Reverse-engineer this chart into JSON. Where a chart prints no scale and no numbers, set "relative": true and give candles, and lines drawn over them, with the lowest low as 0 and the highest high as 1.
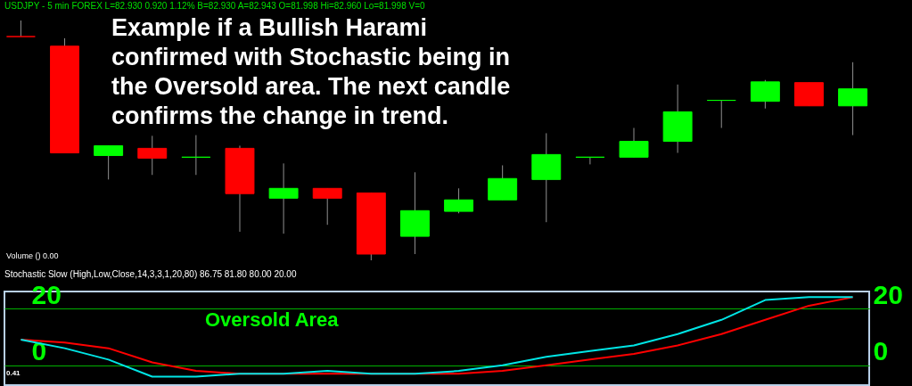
{
  "chart_data": [
    {
      "type": "candlestick",
      "title": "USDJPY - 5 min FOREX L=82.930 0.920 1.12% B=82.930 A=82.943 O=81.998 Hi=82.960 Lo=81.998 V=0",
      "relative": true,
      "categories": [
        null,
        null,
        null,
        null,
        null,
        null,
        null,
        null,
        null,
        null,
        null,
        null,
        null,
        null,
        null,
        null,
        null,
        null,
        null,
        null
      ],
      "ohlc": [
        [
          0.933,
          1,
          0.933,
          0.933
        ],
        [
          0.893,
          0.926,
          0.448,
          0.448
        ],
        [
          0.437,
          0.478,
          0.337,
          0.478
        ],
        [
          0.467,
          0.519,
          0.356,
          0.426
        ],
        [
          0.43,
          0.522,
          0.356,
          0.43
        ],
        [
          0.467,
          0.478,
          0.119,
          0.278
        ],
        [
          0.259,
          0.404,
          0.111,
          0.3
        ],
        [
          0.3,
          0.3,
          0.148,
          0.259
        ],
        [
          0.281,
          0.281,
          0,
          0.026
        ],
        [
          0.1,
          0.367,
          0.026,
          0.207
        ],
        [
          0.204,
          0.3,
          0.196,
          0.252
        ],
        [
          0.252,
          0.396,
          0.252,
          0.341
        ],
        [
          0.337,
          0.53,
          0.159,
          0.441
        ],
        [
          0.43,
          0.43,
          0.4,
          0.43
        ],
        [
          0.43,
          0.552,
          0.43,
          0.496
        ],
        [
          0.496,
          0.733,
          0.448,
          0.619
        ],
        [
          0.667,
          0.667,
          0.552,
          0.667
        ],
        [
          0.663,
          0.752,
          0.633,
          0.744
        ],
        [
          0.741,
          0.741,
          0.644,
          0.644
        ],
        [
          0.644,
          0.826,
          0.522,
          0.715
        ]
      ],
      "colors": [
        "#ff0000",
        "#ff0000",
        "#00ff00",
        "#ff0000",
        "#00ff00",
        "#ff0000",
        "#00ff00",
        "#ff0000",
        "#ff0000",
        "#00ff00",
        "#00ff00",
        "#00ff00",
        "#00ff00",
        "#00ff00",
        "#00ff00",
        "#00ff00",
        "#00ff00",
        "#00ff00",
        "#ff0000",
        "#00ff00"
      ],
      "annotations": [
        "Example if a Bullish Harami confirmed with Stochastic being in the Oversold area. The next candle confirms the change in trend.",
        "Volume () 0.00"
      ]
    },
    {
      "type": "line",
      "title": "Stochastic Slow (High,Low,Close,14,3,3,1,20,80) 86.75 81.80 80.00 20.00",
      "categories": [
        null,
        null,
        null,
        null,
        null,
        null,
        null,
        null,
        null,
        null,
        null,
        null,
        null,
        null,
        null,
        null,
        null,
        null,
        null,
        null
      ],
      "series": [
        {
          "color": "#00e5e5",
          "values": [
            9,
            6,
            2,
            -4,
            -4,
            -3,
            -3,
            -2,
            -3,
            -3,
            -2,
            0,
            3,
            5,
            7,
            11,
            16,
            23,
            24,
            24
          ]
        },
        {
          "color": "#ff0000",
          "values": [
            9,
            8,
            6,
            1,
            -2,
            -3,
            -3,
            -3,
            -3,
            -3,
            -3,
            -2,
            0,
            2,
            4,
            7,
            11,
            16,
            21,
            24
          ]
        }
      ],
      "ylim": [
        -7,
        26
      ],
      "yticks": [
        0,
        20
      ],
      "y2lim": [
        -7,
        26
      ],
      "y2ticks": [
        0,
        20
      ],
      "grid": "y",
      "annotations": [
        "Oversold Area",
        "0.41"
      ]
    }
  ]
}
